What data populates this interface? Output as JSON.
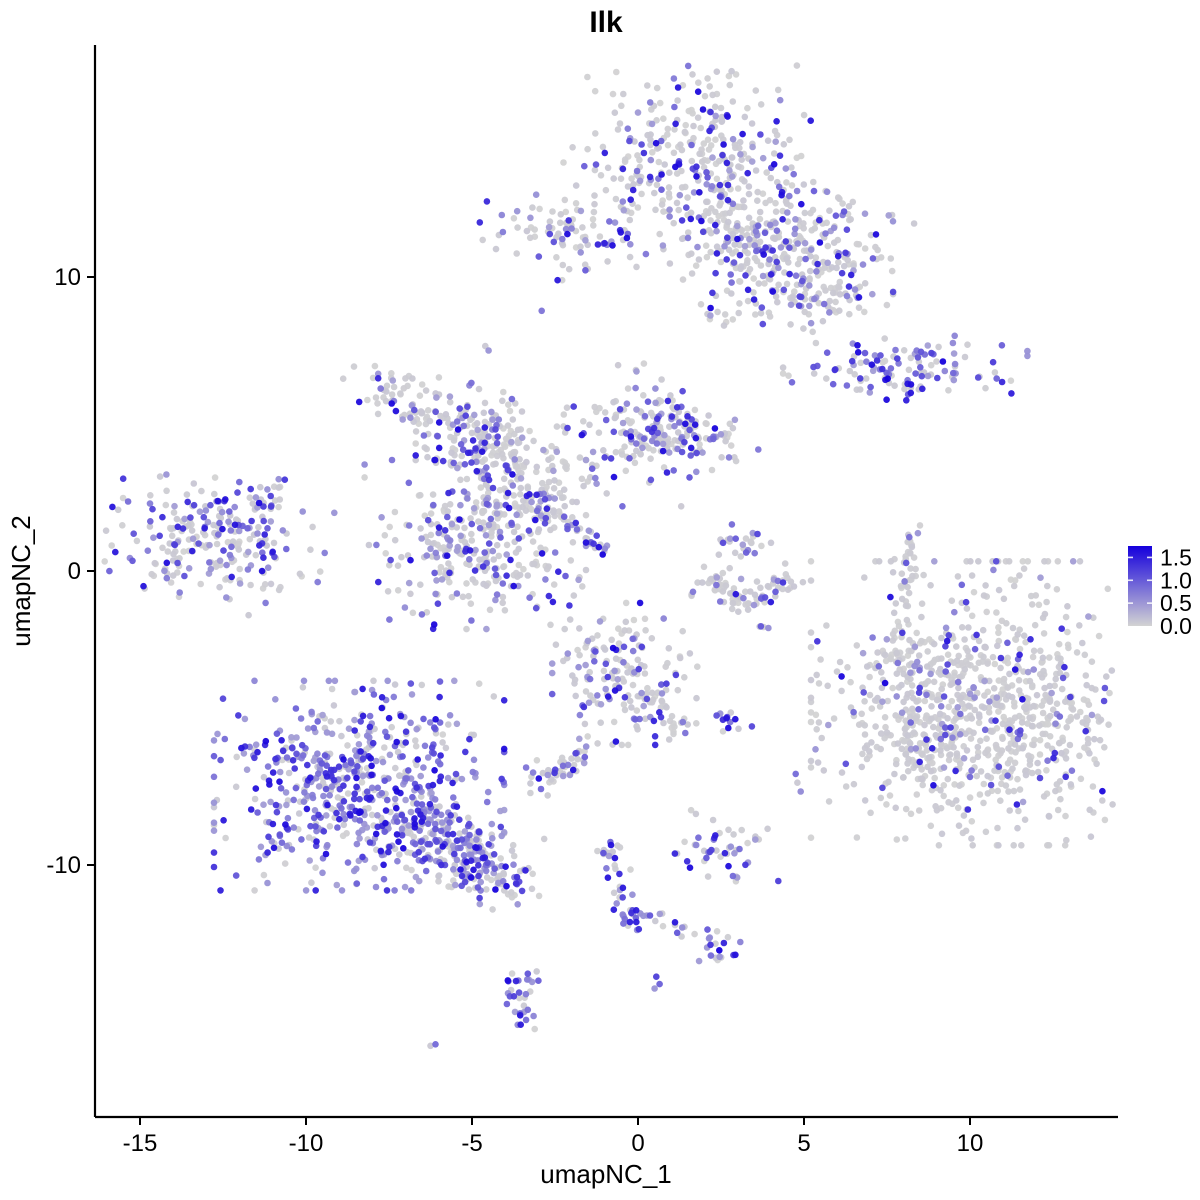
{
  "chart_data": {
    "type": "scatter",
    "subtype": "umap-feature-plot",
    "title": "Ilk",
    "xlabel": "umapNC_1",
    "ylabel": "umapNC_2",
    "x_ticks": [
      -15,
      -10,
      -5,
      0,
      5,
      10
    ],
    "y_ticks": [
      -10,
      0,
      10
    ],
    "x_range": [
      -16.35,
      14.45
    ],
    "y_range": [
      -18.55,
      17.9
    ],
    "grid": false,
    "legend_position": "right",
    "legend": {
      "tick_labels": [
        "1.5",
        "1.0",
        "0.5",
        "0.0"
      ],
      "tick_values": [
        1.5,
        1.0,
        0.5,
        0.0
      ],
      "max_value": 1.75,
      "low_color": "#D3D3D3",
      "high_color": "#1500DC"
    },
    "point_radius": 3.3,
    "seed": 42,
    "clusters": [
      {
        "name": "north-main",
        "type": "blob",
        "cx": 1.55,
        "cy": 14.0,
        "sx": 1.65,
        "sy": 1.45,
        "rot": 0,
        "n": 320,
        "frac": 0.3
      },
      {
        "name": "north-neck",
        "type": "blob",
        "cx": 3.3,
        "cy": 10.9,
        "sx": 1.15,
        "sy": 0.95,
        "rot": 0,
        "n": 130,
        "frac": 0.28
      },
      {
        "name": "north-east-lobe",
        "type": "blob",
        "cx": 5.2,
        "cy": 11.3,
        "sx": 1.25,
        "sy": 0.85,
        "rot": -15,
        "n": 150,
        "frac": 0.3
      },
      {
        "name": "north-southeast-lobe",
        "type": "blob",
        "cx": 5.5,
        "cy": 9.4,
        "sx": 0.95,
        "sy": 0.55,
        "rot": 0,
        "n": 90,
        "frac": 0.33
      },
      {
        "name": "north-bridge",
        "type": "line",
        "x1": 2.2,
        "y1": 12.6,
        "x2": 3.0,
        "y2": 11.6,
        "jitter": 0.5,
        "n": 30,
        "frac": 0.2
      },
      {
        "name": "north-south-arm",
        "type": "line",
        "x1": 2.0,
        "y1": 9.2,
        "x2": 2.8,
        "y2": 8.3,
        "jitter": 0.2,
        "n": 12,
        "frac": 0.35
      },
      {
        "name": "northwest-small",
        "type": "blob",
        "cx": -2.35,
        "cy": 11.5,
        "sx": 1.05,
        "sy": 0.7,
        "rot": 0,
        "n": 80,
        "frac": 0.4
      },
      {
        "name": "northwest-tail",
        "type": "line",
        "x1": -1.1,
        "y1": 11.3,
        "x2": -0.2,
        "y2": 11.2,
        "jitter": 0.15,
        "n": 8,
        "frac": 0.5
      },
      {
        "name": "east-band",
        "type": "blob",
        "cx": 8.05,
        "cy": 6.85,
        "sx": 1.6,
        "sy": 0.5,
        "rot": 0,
        "n": 115,
        "frac": 0.5
      },
      {
        "name": "east-band-tail",
        "type": "line",
        "x1": 7.9,
        "y1": 5.9,
        "x2": 8.6,
        "y2": 6.3,
        "jitter": 0.1,
        "n": 6,
        "frac": 0.5
      },
      {
        "name": "spider-nw-wing",
        "type": "blob",
        "cx": -6.3,
        "cy": 5.6,
        "sx": 1.35,
        "sy": 0.55,
        "rot": -25,
        "n": 115,
        "frac": 0.3
      },
      {
        "name": "spider-west-node",
        "type": "blob",
        "cx": -5.2,
        "cy": 4.3,
        "sx": 0.65,
        "sy": 0.55,
        "rot": 0,
        "n": 55,
        "frac": 0.3
      },
      {
        "name": "spider-vert-arm",
        "type": "line",
        "x1": -4.3,
        "y1": 5.6,
        "x2": -4.0,
        "y2": 4.0,
        "jitter": 0.35,
        "n": 45,
        "frac": 0.12
      },
      {
        "name": "spider-mid-node",
        "type": "blob",
        "cx": -3.8,
        "cy": 2.7,
        "sx": 0.85,
        "sy": 0.75,
        "rot": 0,
        "n": 95,
        "frac": 0.33
      },
      {
        "name": "spider-mid-field",
        "type": "blob",
        "cx": -1.9,
        "cy": 3.9,
        "sx": 1.5,
        "sy": 0.85,
        "rot": 0,
        "n": 85,
        "frac": 0.22
      },
      {
        "name": "spider-ne-lobe",
        "type": "blob",
        "cx": 0.2,
        "cy": 5.1,
        "sx": 0.8,
        "sy": 0.85,
        "rot": 0,
        "n": 105,
        "frac": 0.38
      },
      {
        "name": "spider-ne-ext",
        "type": "blob",
        "cx": 1.8,
        "cy": 4.5,
        "sx": 0.8,
        "sy": 0.55,
        "rot": -20,
        "n": 70,
        "frac": 0.42
      },
      {
        "name": "spider-south-blob",
        "type": "blob",
        "cx": -4.9,
        "cy": 0.9,
        "sx": 1.45,
        "sy": 1.25,
        "rot": 0,
        "n": 290,
        "frac": 0.4
      },
      {
        "name": "spider-streak",
        "type": "line",
        "x1": -2.2,
        "y1": 1.75,
        "x2": -0.9,
        "y2": 0.55,
        "jitter": 0.12,
        "n": 24,
        "frac": 0.5
      },
      {
        "name": "spider-bridge",
        "type": "line",
        "x1": -3.3,
        "y1": 2.2,
        "x2": -2.3,
        "y2": 1.9,
        "jitter": 0.3,
        "n": 25,
        "frac": 0.25
      },
      {
        "name": "west-cluster",
        "type": "blob",
        "cx": -13.0,
        "cy": 1.0,
        "sx": 1.55,
        "sy": 0.95,
        "rot": -12,
        "n": 240,
        "frac": 0.46
      },
      {
        "name": "west-tail",
        "type": "line",
        "x1": -11.6,
        "y1": 2.2,
        "x2": -10.9,
        "y2": 2.9,
        "jitter": 0.3,
        "n": 20,
        "frac": 0.4
      },
      {
        "name": "smile-left",
        "type": "line",
        "x1": 2.0,
        "y1": -0.2,
        "x2": 3.2,
        "y2": -1.05,
        "jitter": 0.28,
        "n": 45,
        "frac": 0.15
      },
      {
        "name": "smile-right",
        "type": "line",
        "x1": 3.2,
        "y1": -1.05,
        "x2": 4.45,
        "y2": -0.35,
        "jitter": 0.28,
        "n": 40,
        "frac": 0.15
      },
      {
        "name": "smile-top-blob",
        "type": "blob",
        "cx": 3.2,
        "cy": 0.75,
        "sx": 0.4,
        "sy": 0.4,
        "rot": 0,
        "n": 25,
        "frac": 0.4
      },
      {
        "name": "smile-below-dots",
        "type": "line",
        "x1": 3.6,
        "y1": -1.7,
        "x2": 3.8,
        "y2": -2.0,
        "jitter": 0.1,
        "n": 4,
        "frac": 0.3
      },
      {
        "name": "right-thin-string",
        "type": "line",
        "x1": 8.2,
        "y1": 1.35,
        "x2": 8.0,
        "y2": -1.1,
        "jitter": 0.18,
        "n": 40,
        "frac": 0.22
      },
      {
        "name": "east-big",
        "type": "blob",
        "cx": 10.5,
        "cy": -4.5,
        "sx": 2.3,
        "sy": 2.1,
        "rot": 0,
        "n": 850,
        "frac": 0.14
      },
      {
        "name": "east-big-west-fringe",
        "type": "blob",
        "cx": 8.6,
        "cy": -5.8,
        "sx": 0.8,
        "sy": 1.0,
        "rot": 0,
        "n": 90,
        "frac": 0.1
      },
      {
        "name": "east-big-nw-tail",
        "type": "blob",
        "cx": 8.1,
        "cy": -2.6,
        "sx": 0.4,
        "sy": 0.5,
        "rot": 0,
        "n": 25,
        "frac": 0.15
      },
      {
        "name": "southwest-main",
        "type": "blob",
        "cx": -8.4,
        "cy": -7.3,
        "sx": 1.9,
        "sy": 1.55,
        "rot": 0,
        "n": 620,
        "frac": 0.7
      },
      {
        "name": "southwest-tail",
        "type": "line",
        "x1": -6.5,
        "y1": -8.8,
        "x2": -3.9,
        "y2": -10.5,
        "jitter": 0.55,
        "n": 200,
        "frac": 0.62
      },
      {
        "name": "southwest-tail-tip",
        "type": "blob",
        "cx": -4.4,
        "cy": -10.6,
        "sx": 0.7,
        "sy": 0.35,
        "rot": 0,
        "n": 25,
        "frac": 0.25
      },
      {
        "name": "center-blob",
        "type": "blob",
        "cx": -0.4,
        "cy": -3.5,
        "sx": 0.95,
        "sy": 1.05,
        "rot": 0,
        "n": 165,
        "frac": 0.33
      },
      {
        "name": "center-tail",
        "type": "line",
        "x1": 0.6,
        "y1": -4.4,
        "x2": 1.3,
        "y2": -5.5,
        "jitter": 0.2,
        "n": 18,
        "frac": 0.3
      },
      {
        "name": "small-dark-blob",
        "type": "blob",
        "cx": 2.8,
        "cy": -5.05,
        "sx": 0.3,
        "sy": 0.25,
        "rot": 0,
        "n": 13,
        "frac": 0.8
      },
      {
        "name": "sw-of-center-line",
        "type": "line",
        "x1": -3.15,
        "y1": -7.5,
        "x2": -1.35,
        "y2": -5.95,
        "jitter": 0.3,
        "n": 48,
        "frac": 0.5
      },
      {
        "name": "small-south-cluster",
        "type": "blob",
        "cx": 2.5,
        "cy": -9.4,
        "sx": 0.75,
        "sy": 0.55,
        "rot": 0,
        "n": 48,
        "frac": 0.45
      },
      {
        "name": "south-streak",
        "type": "line",
        "x1": -1.0,
        "y1": -9.1,
        "x2": -0.2,
        "y2": -11.75,
        "jitter": 0.18,
        "n": 30,
        "frac": 0.5
      },
      {
        "name": "south-streak-blob",
        "type": "blob",
        "cx": -0.25,
        "cy": -11.8,
        "sx": 0.22,
        "sy": 0.22,
        "rot": 0,
        "n": 14,
        "frac": 0.85
      },
      {
        "name": "south-streak-spur",
        "type": "line",
        "x1": 0.3,
        "y1": -11.7,
        "x2": 0.9,
        "y2": -11.75,
        "jitter": 0.1,
        "n": 6,
        "frac": 0.3
      },
      {
        "name": "south-streak-link",
        "type": "line",
        "x1": 0.9,
        "y1": -11.9,
        "x2": 2.1,
        "y2": -12.6,
        "jitter": 0.12,
        "n": 8,
        "frac": 0.4
      },
      {
        "name": "south-blob",
        "type": "blob",
        "cx": 2.4,
        "cy": -12.75,
        "sx": 0.33,
        "sy": 0.33,
        "rot": 0,
        "n": 18,
        "frac": 0.65
      },
      {
        "name": "bottom-crescent-upper",
        "type": "line",
        "x1": -3.2,
        "y1": -13.6,
        "x2": -3.7,
        "y2": -14.5,
        "jitter": 0.22,
        "n": 16,
        "frac": 0.68
      },
      {
        "name": "bottom-crescent-lower",
        "type": "line",
        "x1": -3.7,
        "y1": -14.5,
        "x2": -3.3,
        "y2": -15.4,
        "jitter": 0.22,
        "n": 16,
        "frac": 0.68
      }
    ],
    "extra_points": [
      [
        -0.75,
        -2.62,
        1.0
      ],
      [
        2.45,
        -12.9,
        1.0
      ],
      [
        -1.75,
        -4.9,
        0.4
      ],
      [
        -1.6,
        -5.2,
        0.05
      ],
      [
        4.75,
        -6.9,
        0.5
      ],
      [
        4.8,
        -7.2,
        0.05
      ],
      [
        4.9,
        -7.5,
        0.35
      ],
      [
        0.55,
        -13.8,
        0.7
      ],
      [
        0.65,
        -14.05,
        0.55
      ],
      [
        0.5,
        -14.2,
        0.3
      ],
      [
        -6.1,
        -16.1,
        0.5
      ],
      [
        -6.25,
        -16.15,
        0.05
      ],
      [
        -2.9,
        8.85,
        0.45
      ],
      [
        -4.5,
        7.5,
        0.3
      ],
      [
        -4.6,
        7.65,
        0.05
      ],
      [
        8.05,
        -9.1,
        0.02
      ],
      [
        -0.6,
        7.0,
        0.05
      ],
      [
        1.3,
        2.2,
        0.05
      ]
    ]
  }
}
